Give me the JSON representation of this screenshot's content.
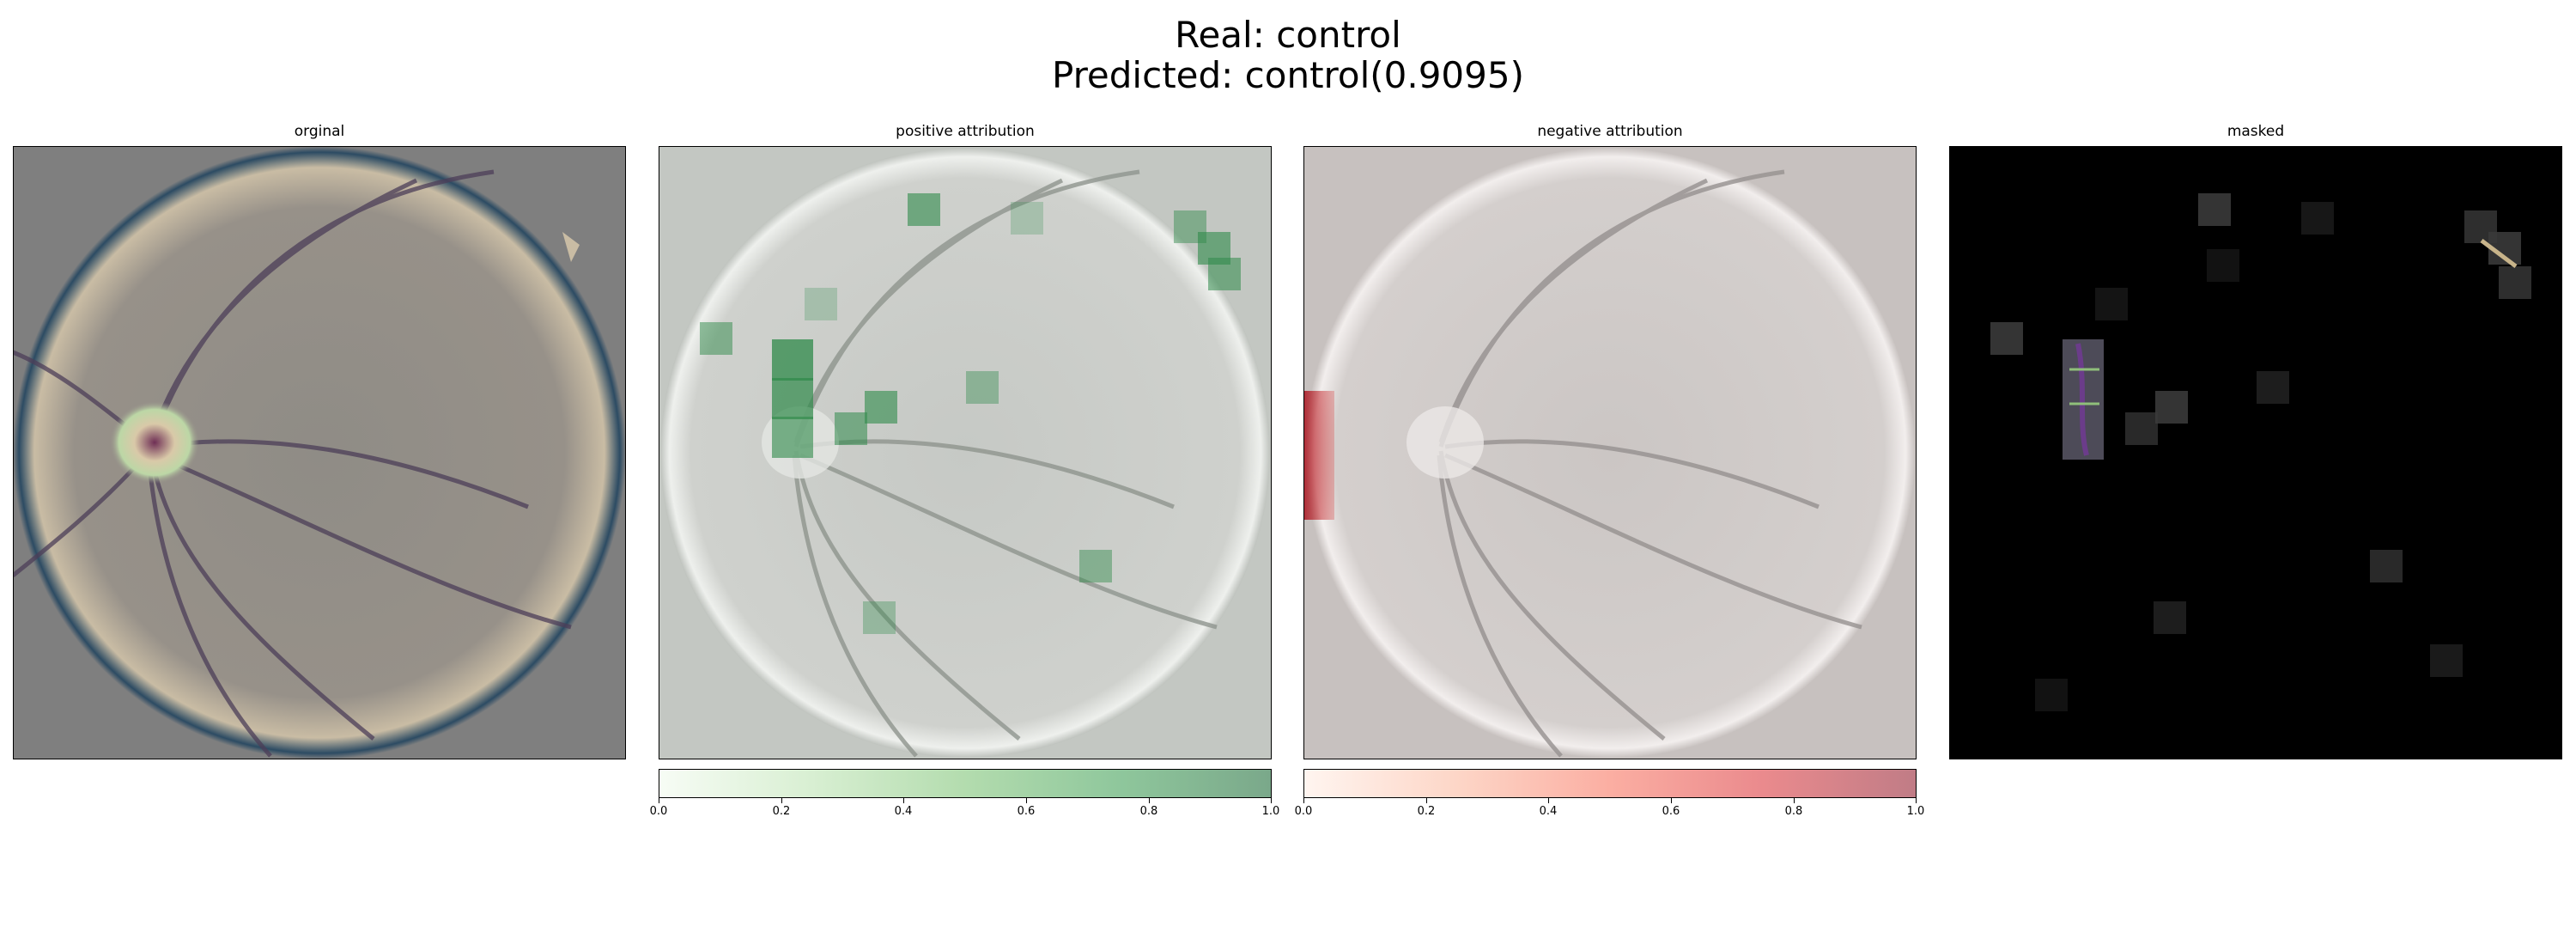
{
  "figure": {
    "title_line_1": "Real: control",
    "title_line_2": "Predicted: control(0.9095)"
  },
  "panels": [
    {
      "title": "orginal"
    },
    {
      "title": "positive attribution"
    },
    {
      "title": "negative attribution"
    },
    {
      "title": "masked"
    }
  ],
  "colorbars": [
    {
      "cmap": "Greens",
      "ticks": [
        "0.0",
        "0.2",
        "0.4",
        "0.6",
        "0.8",
        "1.0"
      ]
    },
    {
      "cmap": "Reds",
      "ticks": [
        "0.0",
        "0.2",
        "0.4",
        "0.6",
        "0.8",
        "1.0"
      ]
    }
  ],
  "colors": {
    "positive_low": "#f7fcf5",
    "positive_high": "#7aa88a",
    "negative_low": "#fff5f0",
    "negative_high": "#c07c86"
  }
}
